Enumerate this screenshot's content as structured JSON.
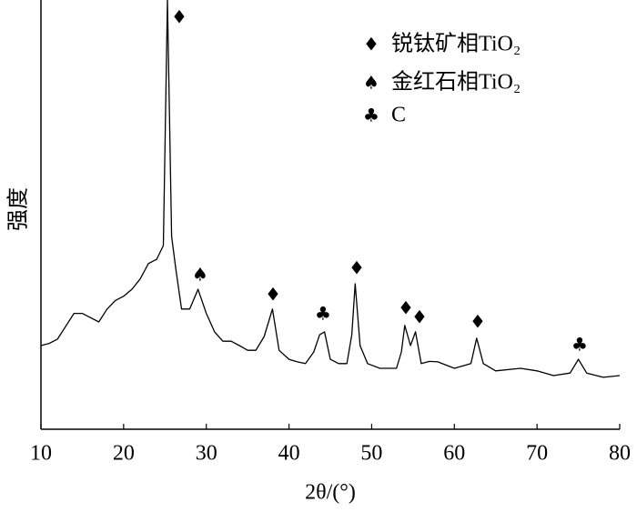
{
  "chart_data": {
    "type": "line",
    "x_label": "2θ/(°)",
    "y_label": "强度",
    "x": [
      10,
      11,
      12,
      13,
      14,
      15,
      16,
      17,
      18,
      19,
      20,
      21,
      22,
      23,
      24,
      24.8,
      25.3,
      25.8,
      26.3,
      27,
      28,
      29,
      30,
      31,
      32,
      33,
      34,
      35,
      36,
      37,
      38,
      38.8,
      40,
      41,
      42,
      43,
      43.7,
      44.3,
      45,
      46,
      47,
      47.6,
      48,
      48.6,
      49.5,
      51,
      53,
      53.6,
      54,
      54.7,
      55.3,
      56,
      57,
      58,
      60,
      62,
      62.7,
      63.5,
      65,
      68,
      70,
      72,
      74,
      75,
      76,
      78,
      80
    ],
    "values": [
      19.5,
      20,
      21,
      24,
      27,
      27,
      26,
      25,
      28,
      30,
      31,
      32.6,
      35,
      38.6,
      39.6,
      42.8,
      100,
      44.9,
      37.5,
      28,
      28,
      32.6,
      27,
      22.7,
      20.5,
      20.5,
      19.5,
      18.4,
      18.4,
      21.6,
      28,
      18.4,
      16.3,
      15.7,
      15.3,
      18,
      22,
      22.7,
      16.3,
      15.3,
      15.3,
      22,
      33.9,
      19.5,
      15.3,
      14.2,
      14.2,
      18,
      24.2,
      19.5,
      22.7,
      15.3,
      15.8,
      15.7,
      14.2,
      15.3,
      21.2,
      15.3,
      13.6,
      14.2,
      13.6,
      12.5,
      13.1,
      16.3,
      13.1,
      12.1,
      12.5
    ],
    "color": "#000000",
    "xlim": [
      10,
      80
    ],
    "xticks": [
      10,
      20,
      30,
      40,
      50,
      60,
      70,
      80
    ],
    "ylim": [
      0,
      100
    ],
    "peak_markers": [
      "♦",
      "♠",
      "♦",
      "♣",
      "♦",
      "♦",
      "♦",
      "♦",
      "♣"
    ],
    "legend": [
      {
        "symbol": "♦",
        "label": "锐钛矿相TiO₂"
      },
      {
        "symbol": "♠",
        "label": "金红石相TiO₂"
      },
      {
        "symbol": "♣",
        "label": "C"
      }
    ]
  }
}
